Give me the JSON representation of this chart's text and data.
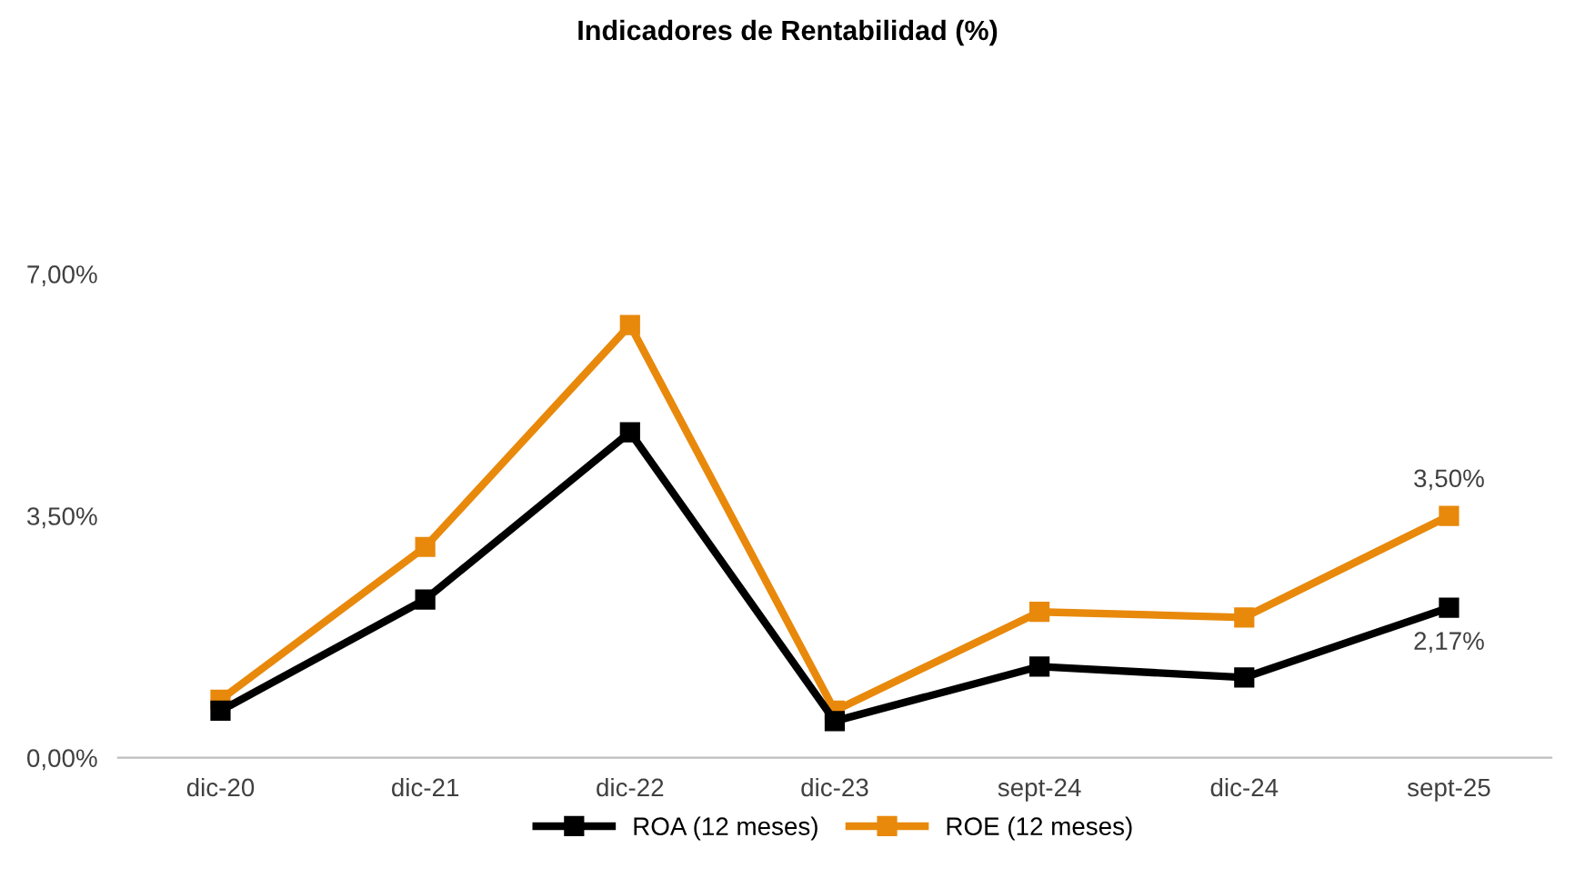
{
  "chart_data": {
    "type": "line",
    "title": "Indicadores de Rentabilidad (%)",
    "categories": [
      "dic-20",
      "dic-21",
      "dic-22",
      "dic-23",
      "sept-24",
      "dic-24",
      "sept-25"
    ],
    "series": [
      {
        "name": "ROA (12 meses)",
        "color": "#000000",
        "marker": "square",
        "values": [
          0.68,
          2.29,
          4.71,
          0.53,
          1.32,
          1.16,
          2.17
        ],
        "value_labels": [
          null,
          null,
          null,
          null,
          null,
          null,
          "2,17%"
        ]
      },
      {
        "name": "ROE (12 meses)",
        "color": "#e8890c",
        "marker": "square",
        "values": [
          0.84,
          3.05,
          6.26,
          0.68,
          2.11,
          2.03,
          3.5
        ],
        "value_labels": [
          null,
          null,
          null,
          null,
          null,
          null,
          "3,50%"
        ]
      }
    ],
    "ylim": [
      0,
      7
    ],
    "yticks": [
      {
        "value": 0,
        "label": "0,00%"
      },
      {
        "value": 3.5,
        "label": "3,50%"
      },
      {
        "value": 7,
        "label": "7,00%"
      }
    ],
    "grid": false,
    "legend": "bottom",
    "line_style": "solid"
  }
}
